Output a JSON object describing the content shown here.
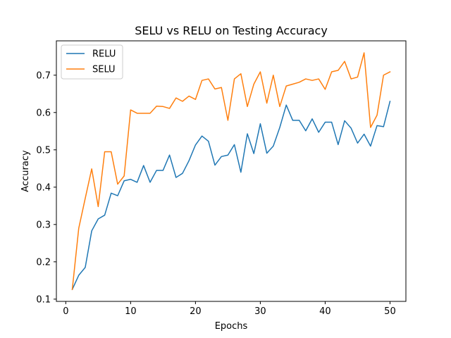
{
  "chart_data": {
    "type": "line",
    "title": "SELU vs RELU on Testing Accuracy",
    "xlabel": "Epochs",
    "ylabel": "Accuracy",
    "xlim": [
      -1.45,
      52.45
    ],
    "ylim": [
      0.094,
      0.792
    ],
    "xticks": [
      0,
      10,
      20,
      30,
      40,
      50
    ],
    "yticks": [
      0.1,
      0.2,
      0.3,
      0.4,
      0.5,
      0.6,
      0.7
    ],
    "xtick_labels": [
      "0",
      "10",
      "20",
      "30",
      "40",
      "50"
    ],
    "ytick_labels": [
      "0.1",
      "0.2",
      "0.3",
      "0.4",
      "0.5",
      "0.6",
      "0.7"
    ],
    "grid": false,
    "legend_position": "top-left",
    "x": [
      1,
      2,
      3,
      4,
      5,
      6,
      7,
      8,
      9,
      10,
      11,
      12,
      13,
      14,
      15,
      16,
      17,
      18,
      19,
      20,
      21,
      22,
      23,
      24,
      25,
      26,
      27,
      28,
      29,
      30,
      31,
      32,
      33,
      34,
      35,
      36,
      37,
      38,
      39,
      40,
      41,
      42,
      43,
      44,
      45,
      46,
      47,
      48,
      49,
      50
    ],
    "series": [
      {
        "name": "RELU",
        "color": "#1f77b4",
        "values": [
          0.126,
          0.164,
          0.185,
          0.283,
          0.315,
          0.325,
          0.384,
          0.377,
          0.417,
          0.421,
          0.413,
          0.458,
          0.413,
          0.445,
          0.445,
          0.486,
          0.426,
          0.437,
          0.471,
          0.513,
          0.537,
          0.523,
          0.459,
          0.482,
          0.486,
          0.514,
          0.44,
          0.543,
          0.49,
          0.57,
          0.491,
          0.51,
          0.56,
          0.62,
          0.579,
          0.579,
          0.551,
          0.583,
          0.547,
          0.574,
          0.574,
          0.514,
          0.578,
          0.558,
          0.518,
          0.542,
          0.51,
          0.565,
          0.562,
          0.63
        ]
      },
      {
        "name": "SELU",
        "color": "#ff7f0e",
        "values": [
          0.126,
          0.29,
          0.37,
          0.449,
          0.348,
          0.495,
          0.495,
          0.408,
          0.43,
          0.607,
          0.598,
          0.598,
          0.598,
          0.617,
          0.616,
          0.611,
          0.639,
          0.63,
          0.644,
          0.635,
          0.686,
          0.69,
          0.663,
          0.667,
          0.579,
          0.69,
          0.704,
          0.616,
          0.676,
          0.709,
          0.625,
          0.7,
          0.616,
          0.671,
          0.676,
          0.681,
          0.69,
          0.686,
          0.69,
          0.662,
          0.709,
          0.713,
          0.737,
          0.69,
          0.695,
          0.76,
          0.56,
          0.593,
          0.7,
          0.709
        ]
      }
    ]
  }
}
